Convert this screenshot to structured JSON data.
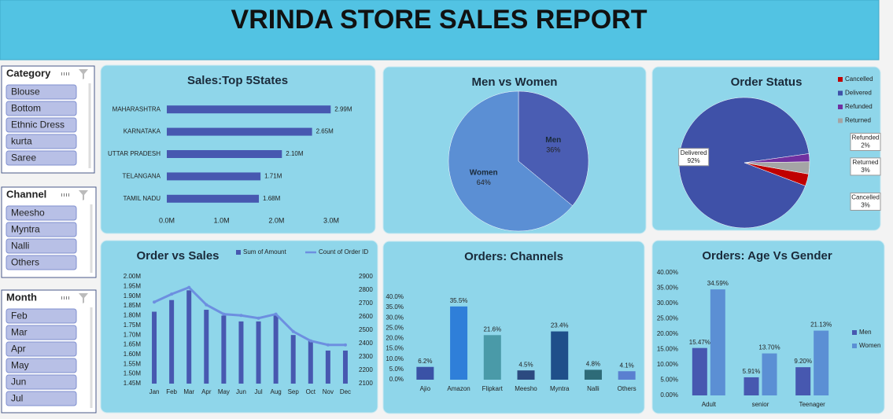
{
  "header": {
    "title": "VRINDA STORE SALES REPORT"
  },
  "slicers": [
    {
      "title": "Category",
      "items": [
        "Blouse",
        "Bottom",
        "Ethnic Dress",
        "kurta",
        "Saree"
      ]
    },
    {
      "title": "Channel",
      "items": [
        "Meesho",
        "Myntra",
        "Nalli",
        "Others"
      ]
    },
    {
      "title": "Month",
      "items": [
        "Feb",
        "Mar",
        "Apr",
        "May",
        "Jun",
        "Jul"
      ]
    }
  ],
  "chart_data": [
    {
      "type": "bar",
      "orientation": "horizontal",
      "title": "Sales:Top 5States",
      "categories": [
        "MAHARASHTRA",
        "KARNATAKA",
        "UTTAR PRADESH",
        "TELANGANA",
        "TAMIL NADU"
      ],
      "values": [
        2990000,
        2650000,
        2100000,
        1710000,
        1680000
      ],
      "value_labels": [
        "2.99M",
        "2.65M",
        "2.10M",
        "1.71M",
        "1.68M"
      ],
      "color": "#4758b0",
      "xlim": [
        0,
        3000000
      ],
      "xticks": [
        {
          "value": 0,
          "label": "0.0M"
        },
        {
          "value": 1000000,
          "label": "1.0M"
        },
        {
          "value": 2000000,
          "label": "2.0M"
        },
        {
          "value": 3000000,
          "label": "3.0M"
        }
      ]
    },
    {
      "type": "pie",
      "title": "Men vs Women",
      "categories": [
        "Men",
        "Women"
      ],
      "values": [
        36,
        64
      ],
      "value_labels": [
        "36%",
        "64%"
      ],
      "colors": [
        "#4a5db3",
        "#5b8fd4"
      ]
    },
    {
      "type": "pie",
      "title": "Order Status",
      "categories": [
        "Cancelled",
        "Delivered",
        "Refunded",
        "Returned"
      ],
      "values": [
        3,
        92,
        2,
        3
      ],
      "value_labels": [
        "3%",
        "92%",
        "2%",
        "3%"
      ],
      "colors": [
        "#c00000",
        "#3f51a8",
        "#7030a0",
        "#a5a5a5"
      ],
      "legend": "right"
    },
    {
      "type": "combo",
      "title": "Order vs Sales",
      "categories": [
        "Jan",
        "Feb",
        "Mar",
        "Apr",
        "May",
        "Jun",
        "Jul",
        "Aug",
        "Sep",
        "Oct",
        "Nov",
        "Dec"
      ],
      "series": [
        {
          "name": "Sum of Amount",
          "type": "bar",
          "color": "#4758b0",
          "values": [
            1820000,
            1880000,
            1930000,
            1830000,
            1800000,
            1770000,
            1770000,
            1800000,
            1700000,
            1670000,
            1620000,
            1620000
          ]
        },
        {
          "name": "Count of Order ID",
          "type": "line",
          "axis": "y2",
          "color": "#6d8fe0",
          "values": [
            2710,
            2770,
            2820,
            2690,
            2620,
            2610,
            2590,
            2620,
            2490,
            2420,
            2390,
            2390
          ]
        }
      ],
      "ylim": [
        1450000,
        2000000
      ],
      "yticks": [
        {
          "value": 1450000,
          "label": "1.45M"
        },
        {
          "value": 1500000,
          "label": "1.50M"
        },
        {
          "value": 1550000,
          "label": "1.55M"
        },
        {
          "value": 1600000,
          "label": "1.60M"
        },
        {
          "value": 1650000,
          "label": "1.65M"
        },
        {
          "value": 1700000,
          "label": "1.70M"
        },
        {
          "value": 1750000,
          "label": "1.75M"
        },
        {
          "value": 1800000,
          "label": "1.80M"
        },
        {
          "value": 1850000,
          "label": "1.85M"
        },
        {
          "value": 1900000,
          "label": "1.90M"
        },
        {
          "value": 1950000,
          "label": "1.95M"
        },
        {
          "value": 2000000,
          "label": "2.00M"
        }
      ],
      "y2lim": [
        2100,
        2900
      ],
      "y2ticks": [
        2100,
        2200,
        2300,
        2400,
        2500,
        2600,
        2700,
        2800,
        2900
      ],
      "legend": "top"
    },
    {
      "type": "bar",
      "title": "Orders: Channels",
      "categories": [
        "Ajio",
        "Amazon",
        "Flipkart",
        "Meesho",
        "Myntra",
        "Nalli",
        "Others"
      ],
      "values": [
        6.2,
        35.5,
        21.6,
        4.5,
        23.4,
        4.8,
        4.1
      ],
      "value_labels": [
        "6.2%",
        "35.5%",
        "21.6%",
        "4.5%",
        "23.4%",
        "4.8%",
        "4.1%"
      ],
      "colors": [
        "#3a52a6",
        "#2f7fd9",
        "#4a9aa8",
        "#2c4a80",
        "#1f4f8a",
        "#2e6b78",
        "#5a7fd0"
      ],
      "ylim": [
        0,
        40
      ],
      "yticks": [
        {
          "value": 0,
          "label": "0.0%"
        },
        {
          "value": 5,
          "label": "5.0%"
        },
        {
          "value": 10,
          "label": "10.0%"
        },
        {
          "value": 15,
          "label": "15.0%"
        },
        {
          "value": 20,
          "label": "20.0%"
        },
        {
          "value": 25,
          "label": "25.0%"
        },
        {
          "value": 30,
          "label": "30.0%"
        },
        {
          "value": 35,
          "label": "35.0%"
        },
        {
          "value": 40,
          "label": "40.0%"
        }
      ]
    },
    {
      "type": "bar",
      "title": "Orders: Age Vs Gender",
      "categories": [
        "Adult",
        "senior",
        "Teenager"
      ],
      "series": [
        {
          "name": "Men",
          "color": "#4758b0",
          "values": [
            15.47,
            5.91,
            9.2
          ],
          "value_labels": [
            "15.47%",
            "5.91%",
            "9.20%"
          ]
        },
        {
          "name": "Women",
          "color": "#5b8fd4",
          "values": [
            34.59,
            13.7,
            21.13
          ],
          "value_labels": [
            "34.59%",
            "13.70%",
            "21.13%"
          ]
        }
      ],
      "ylim": [
        0,
        40
      ],
      "yticks": [
        {
          "value": 0,
          "label": "0.00%"
        },
        {
          "value": 5,
          "label": "5.00%"
        },
        {
          "value": 10,
          "label": "10.00%"
        },
        {
          "value": 15,
          "label": "15.00%"
        },
        {
          "value": 20,
          "label": "20.00%"
        },
        {
          "value": 25,
          "label": "25.00%"
        },
        {
          "value": 30,
          "label": "30.00%"
        },
        {
          "value": 35,
          "label": "35.00%"
        },
        {
          "value": 40,
          "label": "40.00%"
        }
      ],
      "legend": "right"
    }
  ]
}
